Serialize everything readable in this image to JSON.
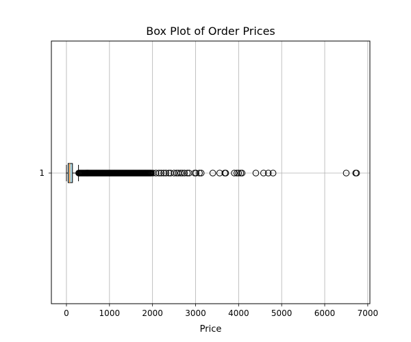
{
  "chart_data": {
    "type": "boxplot",
    "orientation": "horizontal",
    "title": "Box Plot of Order Prices",
    "xlabel": "Price",
    "ylabel": "",
    "xlim": [
      -350,
      7050
    ],
    "x_ticks": [
      0,
      1000,
      2000,
      3000,
      4000,
      5000,
      6000,
      7000
    ],
    "y_ticks": [
      "1"
    ],
    "grid": true,
    "colors": {
      "box_fill": "#add8e6",
      "median": "#ff7f0e",
      "grid": "#b0b0b0",
      "outlier_edge": "#000000"
    },
    "box": {
      "category": "1",
      "whisker_low": 0,
      "q1": 40,
      "median": 75,
      "q3": 140,
      "whisker_high": 280
    },
    "outliers_dense_range": [
      285,
      1980
    ],
    "outliers": [
      2010,
      2080,
      2150,
      2200,
      2260,
      2310,
      2380,
      2420,
      2500,
      2560,
      2600,
      2650,
      2690,
      2740,
      2810,
      2850,
      2980,
      3010,
      3090,
      3130,
      3400,
      3560,
      3680,
      3700,
      3900,
      3960,
      4000,
      4050,
      4080,
      4400,
      4580,
      4690,
      4800,
      6500,
      6720,
      6740
    ]
  }
}
